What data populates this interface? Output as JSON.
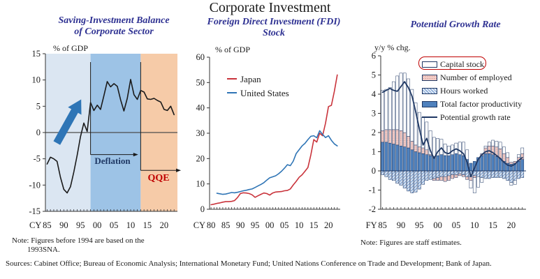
{
  "header": {
    "title": "Corporate Investment"
  },
  "panels": {
    "left": {
      "title_line1": "Saving-Investment Balance",
      "title_line2": "of Corporate Sector"
    },
    "middle": {
      "title_line1": "Foreign Direct Investment (FDI)",
      "title_line2": "Stock"
    },
    "right": {
      "title": "Potential Growth Rate"
    }
  },
  "notes": {
    "left_line1": "Note: Figures before 1994 are based on the",
    "left_line2": "1993SNA.",
    "right": "Note: Figures are staff estimates."
  },
  "sources": "Sources: Cabinet Office; Bureau of Economic Analysis; International Monetary Fund; United Nations Conference on Trade and Development; Bank of Japan.",
  "colors": {
    "panel_title": "#2e3192",
    "axis": "#333333",
    "si_line": "#1a1a1a",
    "region_pre_deflation": "#dbe6f2",
    "region_deflation": "#9dc3e6",
    "region_qqe": "#f6cba8",
    "trend_arrow": "#2e75b6",
    "deflation_label": "#1f3864",
    "qqe_label": "#c00000",
    "japan_line": "#c9333b",
    "us_line": "#2e74b5",
    "navy": "#1f3864",
    "tfp_fill": "#4f81bd",
    "employed_fill": "#f3cdc8",
    "hours_stripe": "#7da3d4"
  },
  "chart_data": [
    {
      "type": "line",
      "panel": "saving-investment-balance",
      "title": "Saving-Investment Balance of Corporate Sector",
      "unit": "% of GDP",
      "x_prefix": "CY",
      "x_start": 1985,
      "ylim": [
        -15,
        15
      ],
      "y_ticks": [
        15,
        10,
        5,
        0,
        -5,
        -10,
        -15
      ],
      "x_tick_years": [
        1985,
        1990,
        1995,
        2000,
        2005,
        2010,
        2015,
        2020
      ],
      "x_tick_labels": [
        "85",
        "90",
        "95",
        "00",
        "05",
        "10",
        "15",
        "20"
      ],
      "values": [
        -6.0,
        -4.7,
        -5.0,
        -5.5,
        -8.5,
        -10.8,
        -11.5,
        -10.3,
        -7.5,
        -4.3,
        -0.8,
        1.8,
        0.2,
        5.7,
        4.2,
        5.2,
        4.4,
        7.0,
        9.7,
        8.7,
        9.3,
        8.8,
        6.2,
        4.1,
        6.5,
        10.1,
        7.2,
        6.3,
        8.0,
        7.7,
        6.4,
        6.3,
        6.5,
        6.1,
        5.8,
        4.4,
        4.2,
        5.0,
        3.4
      ],
      "regions": [
        {
          "label": "pre-deflation",
          "from": 1984.5,
          "to": 1998,
          "color": "#dbe6f2"
        },
        {
          "label": "Deflation",
          "from": 1998,
          "to": 2013,
          "color": "#9dc3e6"
        },
        {
          "label": "QQE",
          "from": 2013,
          "to": 2024,
          "color": "#f6cba8"
        }
      ],
      "annotations": {
        "deflation": {
          "text": "Deflation",
          "year_from": 1998,
          "year_to": 2011,
          "level": -4.2,
          "line_top": 13.4
        },
        "qqe": {
          "text": "QQE",
          "year_from": 2013,
          "year_to": 2023.8,
          "level": -7.2,
          "line_top": 13.4
        },
        "uptrend_arrow": {
          "from_year": 1987.9,
          "from_value": -2.0,
          "to_year": 1995.2,
          "to_value": 6.3
        }
      }
    },
    {
      "type": "line",
      "panel": "fdi-stock",
      "title": "Foreign Direct Investment (FDI) Stock",
      "unit": "% of GDP",
      "x_prefix": "CY",
      "ylim": [
        0,
        60
      ],
      "y_ticks": [
        60,
        50,
        40,
        30,
        20,
        10,
        0
      ],
      "x_tick_years": [
        1980,
        1985,
        1990,
        1995,
        2000,
        2005,
        2010,
        2015,
        2020
      ],
      "x_tick_labels": [
        "80",
        "85",
        "90",
        "95",
        "00",
        "05",
        "10",
        "15",
        "20"
      ],
      "series": [
        {
          "name": "Japan",
          "color": "#c9333b",
          "x_start": 1980,
          "values": [
            1.8,
            2.0,
            2.3,
            2.5,
            2.8,
            3.0,
            3.0,
            3.1,
            3.4,
            4.6,
            6.2,
            6.5,
            6.4,
            6.2,
            5.7,
            4.7,
            5.3,
            5.9,
            6.4,
            6.2,
            5.6,
            6.4,
            6.8,
            6.9,
            7.0,
            7.3,
            7.4,
            8.0,
            9.6,
            11.0,
            12.6,
            13.6,
            15.0,
            16.5,
            21.5,
            27.5,
            26.5,
            30.0,
            29.0,
            34.0,
            40.5,
            41.0,
            46.5,
            53.0
          ]
        },
        {
          "name": "United States",
          "color": "#2e74b5",
          "x_start": 1982,
          "values": [
            6.3,
            6.1,
            5.9,
            6.0,
            6.3,
            6.6,
            6.5,
            6.7,
            7.0,
            7.3,
            7.5,
            7.8,
            8.0,
            8.6,
            9.2,
            9.8,
            10.5,
            11.5,
            12.4,
            12.8,
            13.2,
            14.0,
            15.0,
            16.2,
            17.6,
            17.2,
            19.0,
            22.0,
            23.5,
            25.0,
            26.0,
            27.5,
            28.8,
            29.0,
            28.2,
            31.0,
            29.5,
            28.3,
            29.0,
            27.2,
            25.8,
            25.0
          ]
        }
      ]
    },
    {
      "type": "stacked-bar-line",
      "panel": "potential-growth-rate",
      "title": "Potential Growth Rate",
      "unit": "y/y % chg.",
      "x_prefix": "FY",
      "x_start": 1985,
      "ylim": [
        -2,
        6
      ],
      "y_ticks": [
        6,
        5,
        4,
        3,
        2,
        1,
        0,
        -1,
        -2
      ],
      "x_tick_years": [
        1985,
        1990,
        1995,
        2000,
        2005,
        2010,
        2015,
        2020
      ],
      "x_tick_labels": [
        "85",
        "90",
        "95",
        "00",
        "05",
        "10",
        "15",
        "20"
      ],
      "bar_series": [
        {
          "name": "Total factor productivity",
          "style": "tfp",
          "values": [
            1.5,
            1.5,
            1.45,
            1.4,
            1.35,
            1.3,
            1.25,
            1.2,
            1.1,
            1.0,
            0.95,
            0.9,
            0.85,
            0.8,
            0.75,
            0.8,
            0.85,
            0.8,
            0.8,
            0.85,
            0.9,
            0.85,
            0.8,
            0.6,
            0.4,
            0.5,
            0.7,
            0.8,
            0.9,
            0.9,
            0.85,
            0.75,
            0.65,
            0.5,
            0.4,
            0.35,
            0.4,
            0.5,
            0.6
          ]
        },
        {
          "name": "Hours worked",
          "style": "hours",
          "values": [
            -0.2,
            -0.3,
            -0.45,
            -0.5,
            -0.65,
            -0.75,
            -0.9,
            -1.05,
            -1.15,
            -1.1,
            -0.95,
            -0.7,
            -0.5,
            -0.45,
            -0.4,
            -0.35,
            -0.3,
            -0.3,
            -0.25,
            -0.2,
            -0.2,
            -0.15,
            -0.2,
            -0.3,
            -0.3,
            -0.25,
            -0.3,
            -0.35,
            -0.4,
            -0.4,
            -0.35,
            -0.35,
            -0.35,
            -0.4,
            -0.5,
            -0.6,
            -0.5,
            -0.4,
            -0.35
          ]
        },
        {
          "name": "Number of employed",
          "style": "employed",
          "values": [
            0.6,
            0.65,
            0.7,
            0.75,
            0.8,
            0.8,
            0.75,
            0.6,
            0.45,
            0.35,
            0.3,
            0.3,
            0.25,
            0.05,
            -0.1,
            -0.15,
            -0.2,
            -0.25,
            -0.25,
            -0.2,
            -0.15,
            -0.1,
            -0.1,
            -0.15,
            -0.2,
            -0.1,
            0.0,
            0.1,
            0.3,
            0.4,
            0.45,
            0.5,
            0.5,
            0.4,
            0.3,
            0.1,
            0.1,
            0.2,
            0.3
          ]
        },
        {
          "name": "Capital stock",
          "style": "capital",
          "values": [
            2.1,
            2.1,
            2.2,
            2.5,
            2.8,
            3.0,
            3.1,
            3.0,
            2.7,
            2.2,
            1.8,
            1.6,
            1.45,
            1.25,
            1.0,
            0.9,
            0.8,
            0.6,
            0.5,
            0.5,
            0.55,
            0.65,
            0.7,
            0.5,
            -0.4,
            -0.8,
            -0.55,
            -0.25,
            0.1,
            0.2,
            0.3,
            0.3,
            0.35,
            0.35,
            0.25,
            -0.15,
            -0.2,
            0.15,
            0.3
          ]
        }
      ],
      "line_series": {
        "name": "Potential growth rate",
        "color": "#1f3864",
        "values": [
          4.1,
          4.2,
          4.3,
          4.2,
          4.15,
          4.4,
          4.65,
          4.35,
          3.9,
          3.1,
          2.2,
          1.35,
          1.7,
          1.05,
          0.65,
          1.0,
          1.2,
          0.95,
          0.9,
          1.05,
          1.15,
          1.05,
          0.9,
          0.45,
          -0.3,
          0.15,
          0.6,
          0.85,
          1.0,
          1.05,
          0.95,
          0.8,
          0.65,
          0.45,
          0.3,
          0.25,
          0.35,
          0.55,
          0.7
        ]
      }
    }
  ]
}
